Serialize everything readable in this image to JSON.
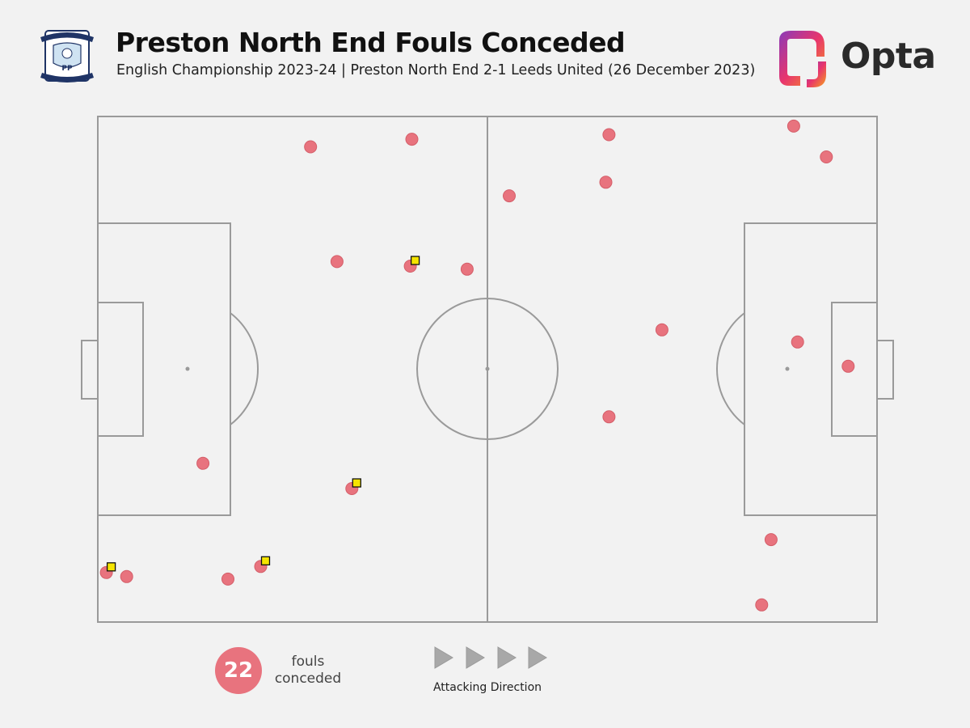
{
  "header": {
    "title": "Preston North End Fouls Conceded",
    "subtitle": "English Championship 2023-24 | Preston North End 2-1 Leeds United (26 December 2023)",
    "crest_label": "PP",
    "brand": "Opta"
  },
  "legend": {
    "count": "22",
    "count_label_line1": "fouls",
    "count_label_line2": "conceded",
    "direction_label": "Attacking Direction"
  },
  "colors": {
    "background": "#f2f2f2",
    "pitch_lines": "#9a9a9a",
    "foul_marker": "#e8737e",
    "yellow_card": "#f5e400",
    "arrow": "#a8a8a8"
  },
  "chart_data": {
    "type": "scatter",
    "title": "Preston North End Fouls Conceded",
    "xlim": [
      0,
      100
    ],
    "ylim": [
      0,
      100
    ],
    "x_direction": "left-to-right attacking",
    "points": [
      {
        "x": 27.3,
        "y": 94.0,
        "card": false
      },
      {
        "x": 40.3,
        "y": 95.5,
        "card": false
      },
      {
        "x": 65.6,
        "y": 96.4,
        "card": false
      },
      {
        "x": 89.3,
        "y": 98.1,
        "card": false
      },
      {
        "x": 93.5,
        "y": 92.0,
        "card": false
      },
      {
        "x": 52.8,
        "y": 84.3,
        "card": false
      },
      {
        "x": 65.2,
        "y": 87.0,
        "card": false
      },
      {
        "x": 30.7,
        "y": 71.3,
        "card": false
      },
      {
        "x": 40.1,
        "y": 70.4,
        "card": true
      },
      {
        "x": 47.4,
        "y": 69.8,
        "card": false
      },
      {
        "x": 72.4,
        "y": 57.8,
        "card": false
      },
      {
        "x": 89.8,
        "y": 55.4,
        "card": false
      },
      {
        "x": 96.3,
        "y": 50.6,
        "card": false
      },
      {
        "x": 65.6,
        "y": 40.6,
        "card": false
      },
      {
        "x": 13.5,
        "y": 31.4,
        "card": false
      },
      {
        "x": 32.6,
        "y": 26.4,
        "card": true
      },
      {
        "x": 86.4,
        "y": 16.3,
        "card": false
      },
      {
        "x": 20.9,
        "y": 11.0,
        "card": true
      },
      {
        "x": 1.1,
        "y": 9.8,
        "card": true
      },
      {
        "x": 3.7,
        "y": 9.0,
        "card": false
      },
      {
        "x": 16.7,
        "y": 8.5,
        "card": false
      },
      {
        "x": 85.2,
        "y": 3.4,
        "card": false
      }
    ]
  }
}
